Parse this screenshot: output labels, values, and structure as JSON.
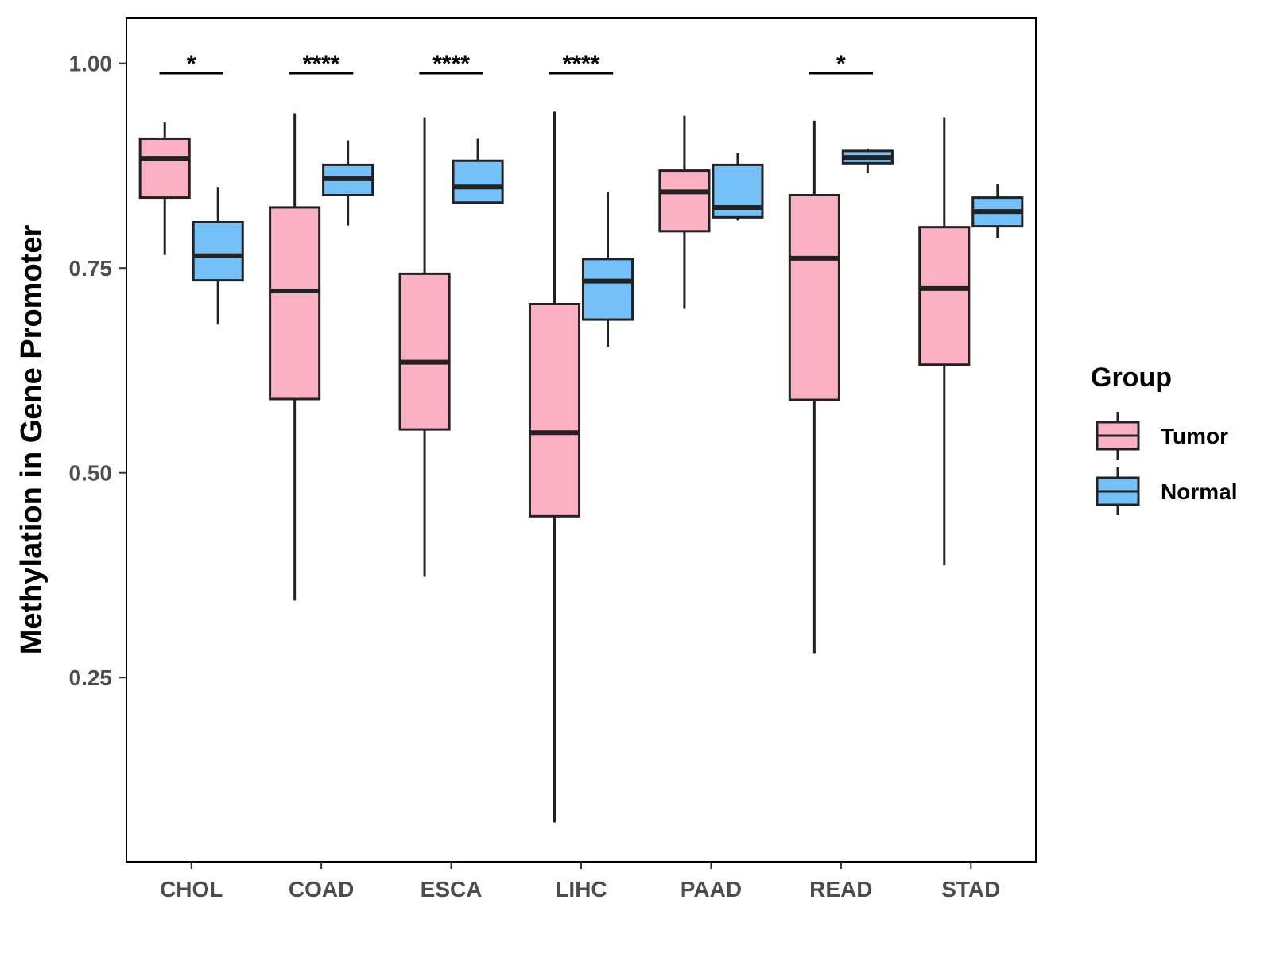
{
  "chart_data": {
    "type": "boxplot",
    "title": "",
    "xlabel": "",
    "ylabel": "Methylation in Gene Promoter",
    "ylim": [
      0.025,
      1.055
    ],
    "yticks": [
      0.25,
      0.5,
      0.75,
      1.0
    ],
    "ytick_labels": [
      "0.25",
      "0.50",
      "0.75",
      "1.00"
    ],
    "categories": [
      "CHOL",
      "COAD",
      "ESCA",
      "LIHC",
      "PAAD",
      "READ",
      "STAD"
    ],
    "legend": {
      "title": "Group",
      "position": "right",
      "entries": [
        {
          "name": "Tumor",
          "color": "#FBB0C4"
        },
        {
          "name": "Normal",
          "color": "#74C0F8"
        }
      ]
    },
    "series": [
      {
        "name": "Tumor",
        "color": "#FBB0C4",
        "boxes": [
          {
            "category": "CHOL",
            "whisker_low": 0.766,
            "q1": 0.836,
            "median": 0.884,
            "q3": 0.908,
            "whisker_high": 0.928
          },
          {
            "category": "COAD",
            "whisker_low": 0.344,
            "q1": 0.59,
            "median": 0.722,
            "q3": 0.824,
            "whisker_high": 0.939
          },
          {
            "category": "ESCA",
            "whisker_low": 0.373,
            "q1": 0.553,
            "median": 0.635,
            "q3": 0.743,
            "whisker_high": 0.934
          },
          {
            "category": "LIHC",
            "whisker_low": 0.073,
            "q1": 0.447,
            "median": 0.549,
            "q3": 0.706,
            "whisker_high": 0.941
          },
          {
            "category": "PAAD",
            "whisker_low": 0.7,
            "q1": 0.795,
            "median": 0.843,
            "q3": 0.869,
            "whisker_high": 0.936
          },
          {
            "category": "READ",
            "whisker_low": 0.279,
            "q1": 0.589,
            "median": 0.762,
            "q3": 0.839,
            "whisker_high": 0.93
          },
          {
            "category": "STAD",
            "whisker_low": 0.387,
            "q1": 0.632,
            "median": 0.725,
            "q3": 0.8,
            "whisker_high": 0.934
          }
        ]
      },
      {
        "name": "Normal",
        "color": "#74C0F8",
        "boxes": [
          {
            "category": "CHOL",
            "whisker_low": 0.681,
            "q1": 0.735,
            "median": 0.765,
            "q3": 0.806,
            "whisker_high": 0.849
          },
          {
            "category": "COAD",
            "whisker_low": 0.802,
            "q1": 0.839,
            "median": 0.859,
            "q3": 0.876,
            "whisker_high": 0.906
          },
          {
            "category": "ESCA",
            "whisker_low": 0.83,
            "q1": 0.83,
            "median": 0.849,
            "q3": 0.881,
            "whisker_high": 0.908
          },
          {
            "category": "LIHC",
            "whisker_low": 0.654,
            "q1": 0.687,
            "median": 0.734,
            "q3": 0.761,
            "whisker_high": 0.843
          },
          {
            "category": "PAAD",
            "whisker_low": 0.808,
            "q1": 0.812,
            "median": 0.824,
            "q3": 0.876,
            "whisker_high": 0.89
          },
          {
            "category": "READ",
            "whisker_low": 0.866,
            "q1": 0.878,
            "median": 0.885,
            "q3": 0.893,
            "whisker_high": 0.896
          },
          {
            "category": "STAD",
            "whisker_low": 0.787,
            "q1": 0.801,
            "median": 0.819,
            "q3": 0.836,
            "whisker_high": 0.852
          }
        ]
      }
    ],
    "annotations": [
      {
        "category": "CHOL",
        "label": "*",
        "y": 0.988
      },
      {
        "category": "COAD",
        "label": "****",
        "y": 0.988
      },
      {
        "category": "ESCA",
        "label": "****",
        "y": 0.988
      },
      {
        "category": "LIHC",
        "label": "****",
        "y": 0.988
      },
      {
        "category": "READ",
        "label": "*",
        "y": 0.988
      }
    ]
  }
}
